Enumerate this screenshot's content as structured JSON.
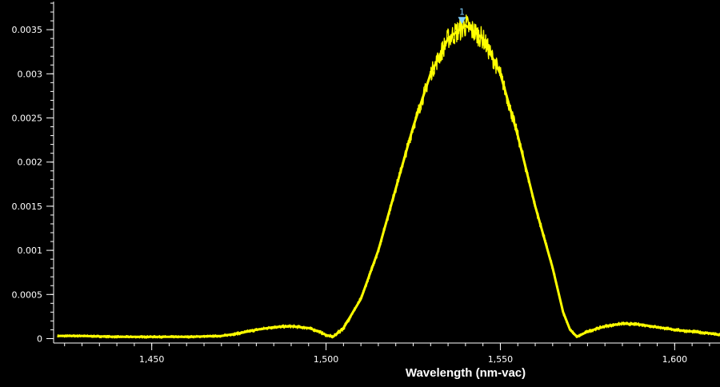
{
  "chart_data": {
    "type": "line",
    "title": "",
    "xlabel": "Wavelength (nm-vac)",
    "ylabel": "",
    "xlim": [
      1423,
      1613
    ],
    "ylim": [
      -5e-05,
      0.0038
    ],
    "x_ticks": [
      1450,
      1500,
      1550,
      1600
    ],
    "x_tick_labels": [
      "1,450",
      "1,500",
      "1,550",
      "1,600"
    ],
    "y_ticks": [
      0,
      0.0005,
      0.001,
      0.0015,
      0.002,
      0.0025,
      0.003,
      0.0035
    ],
    "y_tick_labels": [
      "0",
      "0.0005",
      "0.001",
      "0.0015",
      "0.002",
      "0.0025",
      "0.003",
      "0.0035"
    ],
    "grid": false,
    "legend": "none",
    "colors": {
      "background": "#000000",
      "series": "#ffff00",
      "axis": "#ffffff",
      "marker": "#7fd0ff"
    },
    "series": [
      {
        "x": [
          1423,
          1430,
          1440,
          1450,
          1460,
          1470,
          1475,
          1480,
          1485,
          1490,
          1495,
          1498,
          1500,
          1502,
          1505,
          1510,
          1515,
          1520,
          1525,
          1530,
          1535,
          1540,
          1545,
          1550,
          1555,
          1560,
          1565,
          1568,
          1570,
          1572,
          1575,
          1580,
          1585,
          1590,
          1595,
          1600,
          1605,
          1610,
          1613
        ],
        "y": [
          3e-05,
          3e-05,
          2e-05,
          2e-05,
          2e-05,
          3e-05,
          6e-05,
          0.0001,
          0.00013,
          0.00014,
          0.00012,
          8e-05,
          4e-05,
          2e-05,
          0.00012,
          0.00045,
          0.001,
          0.0017,
          0.0024,
          0.003,
          0.0034,
          0.00355,
          0.0034,
          0.003,
          0.0023,
          0.0015,
          0.0008,
          0.0003,
          0.0001,
          2e-05,
          8e-05,
          0.00014,
          0.00017,
          0.00016,
          0.00013,
          0.0001,
          8e-05,
          6e-05,
          4e-05
        ],
        "noise_band": [
          1.5e-05,
          1.5e-05,
          1.5e-05,
          1.5e-05,
          1.5e-05,
          1.5e-05,
          2e-05,
          2e-05,
          2e-05,
          2e-05,
          2e-05,
          2e-05,
          2e-05,
          2e-05,
          3e-05,
          3e-05,
          4e-05,
          5e-05,
          7e-05,
          9e-05,
          0.00012,
          0.00014,
          0.00012,
          9e-05,
          7e-05,
          5e-05,
          4e-05,
          3e-05,
          2e-05,
          2e-05,
          2e-05,
          2e-05,
          2e-05,
          2e-05,
          2e-05,
          2e-05,
          2e-05,
          2e-05,
          2e-05
        ]
      }
    ],
    "annotations": [
      {
        "label": "1",
        "x": 1539,
        "y": 0.00358
      }
    ]
  }
}
